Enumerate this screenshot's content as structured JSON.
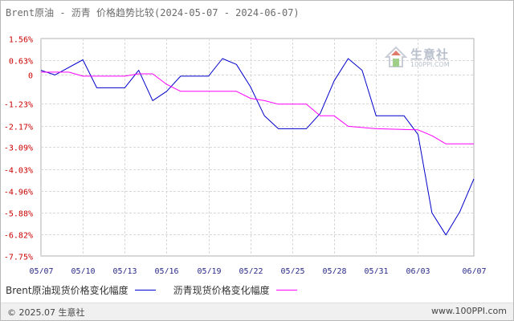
{
  "title": "Brent原油 - 沥青 价格趋势比较(2024-05-07 - 2024-06-07)",
  "logo": {
    "cn": "生意社",
    "en": "100PPI.COM"
  },
  "footer": {
    "copyright": "© 2025.07 生意社",
    "url": "www.100PPI.com"
  },
  "chart_data": {
    "type": "line",
    "title": "Brent原油 - 沥青 价格趋势比较(2024-05-07 - 2024-06-07)",
    "xlabel": "",
    "ylabel": "",
    "x_ticks": [
      "05/07",
      "05/10",
      "05/13",
      "05/16",
      "05/19",
      "05/22",
      "05/25",
      "05/28",
      "05/31",
      "06/03",
      "06/07"
    ],
    "y_ticks": [
      "1.56%",
      "0.63%",
      "0",
      "-1.23%",
      "-2.17%",
      "-3.09%",
      "-4.03%",
      "-4.96%",
      "-5.88%",
      "-6.82%",
      "-7.75%"
    ],
    "y_tick_values": [
      1.56,
      0.63,
      0,
      -1.23,
      -2.17,
      -3.09,
      -4.03,
      -4.96,
      -5.88,
      -6.82,
      -7.75
    ],
    "x_range": [
      "05/07",
      "06/07"
    ],
    "y_range": [
      -7.75,
      1.56
    ],
    "grid": true,
    "legend_position": "bottom",
    "series": [
      {
        "name": "Brent原油现货价格变化幅度",
        "color": "#0000cc",
        "points": [
          [
            "05/07",
            0.2
          ],
          [
            "05/08",
            0.0
          ],
          [
            "05/10",
            0.65
          ],
          [
            "05/11",
            -0.55
          ],
          [
            "05/13",
            -0.55
          ],
          [
            "05/14",
            0.2
          ],
          [
            "05/15",
            -1.1
          ],
          [
            "05/16",
            -0.7
          ],
          [
            "05/17",
            -0.05
          ],
          [
            "05/19",
            -0.05
          ],
          [
            "05/20",
            0.7
          ],
          [
            "05/21",
            0.45
          ],
          [
            "05/22",
            -0.5
          ],
          [
            "05/23",
            -1.75
          ],
          [
            "05/24",
            -2.3
          ],
          [
            "05/26",
            -2.3
          ],
          [
            "05/27",
            -1.65
          ],
          [
            "05/28",
            -0.25
          ],
          [
            "05/29",
            0.7
          ],
          [
            "05/30",
            0.2
          ],
          [
            "05/31",
            -1.75
          ],
          [
            "06/02",
            -1.75
          ],
          [
            "06/03",
            -2.55
          ],
          [
            "06/04",
            -5.9
          ],
          [
            "06/05",
            -6.85
          ],
          [
            "06/06",
            -5.85
          ],
          [
            "06/07",
            -4.45
          ]
        ]
      },
      {
        "name": "沥青现货价格变化幅度",
        "color": "#ff00ff",
        "points": [
          [
            "05/07",
            0.12
          ],
          [
            "05/09",
            0.12
          ],
          [
            "05/10",
            -0.05
          ],
          [
            "05/13",
            -0.05
          ],
          [
            "05/14",
            0.05
          ],
          [
            "05/15",
            0.05
          ],
          [
            "05/16",
            -0.4
          ],
          [
            "05/17",
            -0.7
          ],
          [
            "05/21",
            -0.7
          ],
          [
            "05/22",
            -1.0
          ],
          [
            "05/23",
            -1.1
          ],
          [
            "05/24",
            -1.25
          ],
          [
            "05/26",
            -1.25
          ],
          [
            "05/27",
            -1.75
          ],
          [
            "05/28",
            -1.75
          ],
          [
            "05/29",
            -2.2
          ],
          [
            "05/31",
            -2.3
          ],
          [
            "06/03",
            -2.35
          ],
          [
            "06/04",
            -2.6
          ],
          [
            "06/05",
            -2.95
          ],
          [
            "06/07",
            -2.95
          ]
        ]
      }
    ]
  }
}
